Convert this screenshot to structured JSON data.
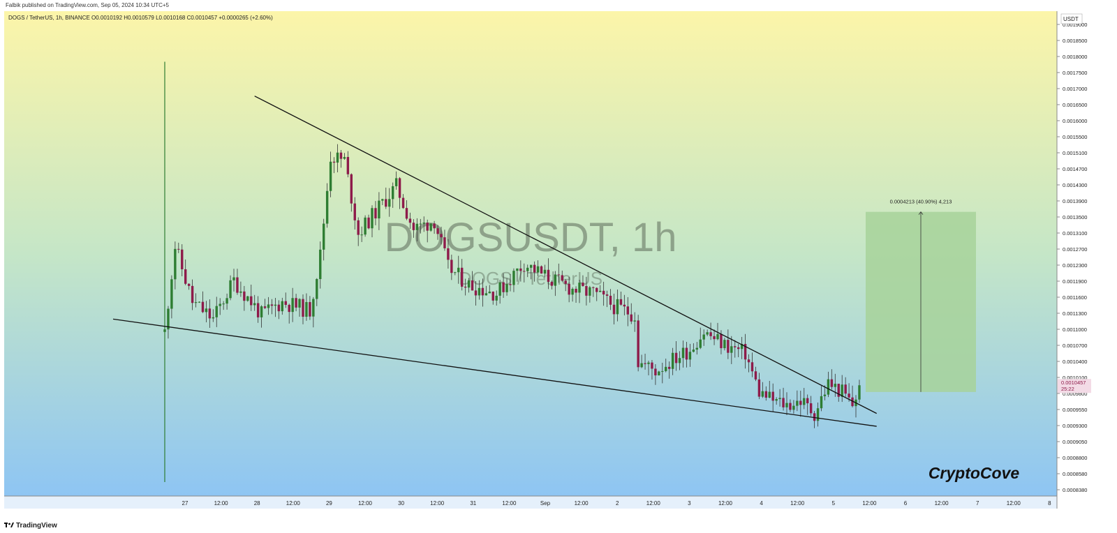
{
  "header": {
    "published": "Falbik published on TradingView.com, Sep 05, 2024 10:34 UTC+5",
    "ohlc": "DOGS / TetherUS, 1h, BINANCE  O0.0010192  H0.0010579  L0.0010168  C0.0010457  +0.0000265 (+2.60%)",
    "currency_badge": "USDT"
  },
  "watermark": {
    "symbol": "DOGSUSDT, 1h",
    "pair": "DOGS / TetherUS"
  },
  "brand": "CryptoCove",
  "footer": {
    "logo": "TradingView"
  },
  "colors": {
    "up": "#2e7d32",
    "down": "#8e1b4a",
    "wick": "#333333",
    "gradient_top": "#fcf5a9",
    "gradient_bottom": "#8ec5f3",
    "target_box": "#a7d29a"
  },
  "chart_data": {
    "type": "candlestick",
    "symbol": "DOGS / TetherUS",
    "interval": "1h",
    "exchange": "BINANCE",
    "last_price": "0.0010457",
    "countdown": "25:22",
    "ylim": [
      0.00082,
      0.0019
    ],
    "yticks": [
      "0.0019000",
      "0.0018500",
      "0.0018000",
      "0.0017500",
      "0.0017000",
      "0.0016500",
      "0.0016000",
      "0.0015500",
      "0.0015100",
      "0.0014700",
      "0.0014300",
      "0.0013900",
      "0.0013500",
      "0.0013100",
      "0.0012700",
      "0.0012300",
      "0.0011900",
      "0.0011600",
      "0.0011300",
      "0.0011000",
      "0.0010700",
      "0.0010400",
      "0.0010100",
      "0.0009800",
      "0.0009550",
      "0.0009300",
      "0.0009050",
      "0.0008800",
      "0.0008580",
      "0.0008380"
    ],
    "xticks": [
      "27",
      "12:00",
      "28",
      "12:00",
      "29",
      "12:00",
      "30",
      "12:00",
      "31",
      "12:00",
      "Sep",
      "12:00",
      "2",
      "12:00",
      "3",
      "12:00",
      "4",
      "12:00",
      "5",
      "12:00",
      "6",
      "12:00",
      "7",
      "12:00",
      "8"
    ],
    "anchors": [
      {
        "t": 0,
        "p": 0.00117
      },
      {
        "t": 1,
        "p": 0.00124
      },
      {
        "t": 3,
        "p": 0.00137
      },
      {
        "t": 8,
        "p": 0.00124
      },
      {
        "t": 14,
        "p": 0.0012
      },
      {
        "t": 20,
        "p": 0.00129
      },
      {
        "t": 28,
        "p": 0.00121
      },
      {
        "t": 34,
        "p": 0.00124
      },
      {
        "t": 42,
        "p": 0.00122
      },
      {
        "t": 45,
        "p": 0.00135
      },
      {
        "t": 48,
        "p": 0.00158
      },
      {
        "t": 52,
        "p": 0.00157
      },
      {
        "t": 56,
        "p": 0.0014
      },
      {
        "t": 62,
        "p": 0.00146
      },
      {
        "t": 67,
        "p": 0.00151
      },
      {
        "t": 72,
        "p": 0.00141
      },
      {
        "t": 78,
        "p": 0.00143
      },
      {
        "t": 82,
        "p": 0.00132
      },
      {
        "t": 88,
        "p": 0.00128
      },
      {
        "t": 96,
        "p": 0.00126
      },
      {
        "t": 104,
        "p": 0.00133
      },
      {
        "t": 110,
        "p": 0.0013
      },
      {
        "t": 118,
        "p": 0.00127
      },
      {
        "t": 124,
        "p": 0.00126
      },
      {
        "t": 130,
        "p": 0.00123
      },
      {
        "t": 136,
        "p": 0.00121
      },
      {
        "t": 137,
        "p": 0.0011
      },
      {
        "t": 142,
        "p": 0.00108
      },
      {
        "t": 146,
        "p": 0.0011
      },
      {
        "t": 152,
        "p": 0.00113
      },
      {
        "t": 156,
        "p": 0.00117
      },
      {
        "t": 162,
        "p": 0.00114
      },
      {
        "t": 168,
        "p": 0.00112
      },
      {
        "t": 172,
        "p": 0.00103
      },
      {
        "t": 176,
        "p": 0.00101
      },
      {
        "t": 180,
        "p": 0.001
      },
      {
        "t": 184,
        "p": 0.00101
      },
      {
        "t": 188,
        "p": 0.00098
      },
      {
        "t": 192,
        "p": 0.00105
      },
      {
        "t": 196,
        "p": 0.00103
      },
      {
        "t": 199,
        "p": 0.001
      },
      {
        "t": 201,
        "p": 0.00104
      }
    ],
    "trendlines": [
      {
        "name": "upper",
        "t1": 26,
        "p1": 0.00172,
        "t2": 206,
        "p2": 0.00098
      },
      {
        "name": "lower",
        "t1": 0,
        "p1": 0.00119,
        "t2": 206,
        "p2": 0.00095
      }
    ],
    "measure": {
      "label": "0.0004213 (40.90%) 4,213",
      "from": 0.00103,
      "to": 0.00145
    }
  }
}
